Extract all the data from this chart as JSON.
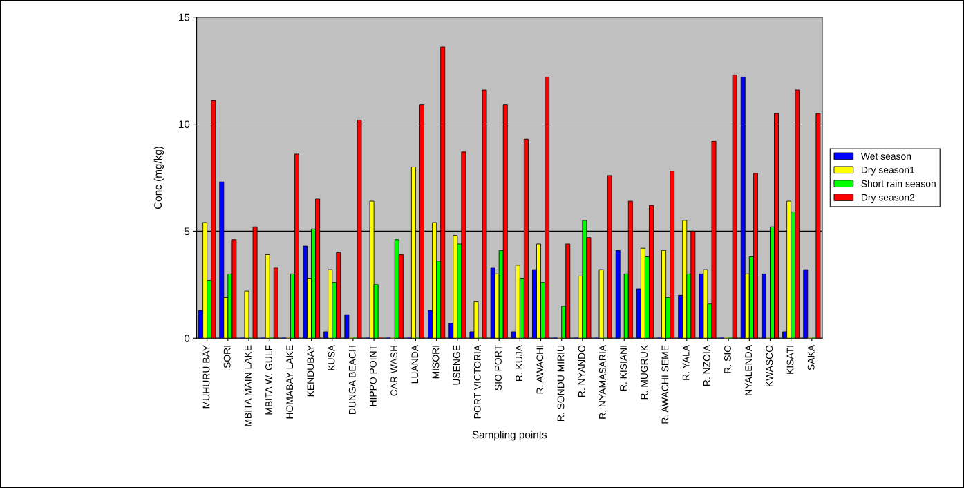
{
  "chart_data": {
    "type": "bar",
    "xlabel": "Sampling points",
    "ylabel": "Conc (mg/kg)",
    "categories": [
      "MUHURU BAY",
      "SORI",
      "MBITA MAIN LAKE",
      "MBITA W. GULF",
      "HOMABAY LAKE",
      "KENDUBAY",
      "KUSA",
      "DUNGA BEACH",
      "HIPPO POINT",
      "CAR WASH",
      "LUANDA",
      "MISORI",
      "USENGE",
      "PORT VICTORIA",
      "SIO PORT",
      "R. KUJA",
      "R. AWACHI",
      "R. SONDU MIRIU",
      "R. NYANDO",
      "R. NYAMASARIA",
      "R. KISIANI",
      "R. MUGRUK",
      "R. AWACHI SEME",
      "R. YALA",
      "R. NZOIA",
      "R. SIO",
      "NYALENDA",
      "KWASCO",
      "KISATI",
      "SAKA"
    ],
    "series": [
      {
        "name": "Wet season",
        "color": "#0000ff",
        "values": [
          1.3,
          7.3,
          0,
          0,
          0,
          4.3,
          0.3,
          1.1,
          0,
          0,
          0,
          1.3,
          0.7,
          0.3,
          3.3,
          0.3,
          3.2,
          0,
          0,
          0,
          4.1,
          2.3,
          0,
          2.0,
          3.0,
          0,
          12.2,
          3.0,
          0.3,
          3.2
        ]
      },
      {
        "name": "Dry season1",
        "color": "#ffff00",
        "values": [
          5.4,
          1.9,
          2.2,
          3.9,
          0,
          2.8,
          3.2,
          0,
          6.4,
          0,
          8.0,
          5.4,
          4.8,
          1.7,
          3.0,
          3.4,
          4.4,
          0,
          2.9,
          3.2,
          0,
          4.2,
          4.1,
          5.5,
          3.2,
          0,
          3.0,
          0,
          6.4,
          0
        ]
      },
      {
        "name": "Short rain season",
        "color": "#00ff00",
        "values": [
          2.7,
          3.0,
          0,
          0,
          3.0,
          5.1,
          2.6,
          0,
          2.5,
          4.6,
          0,
          3.6,
          4.4,
          0,
          4.1,
          2.8,
          2.6,
          1.5,
          5.5,
          0,
          3.0,
          3.8,
          1.9,
          3.0,
          1.6,
          0,
          3.8,
          5.2,
          5.9,
          0
        ]
      },
      {
        "name": "Dry season2",
        "color": "#ff0000",
        "values": [
          11.1,
          4.6,
          5.2,
          3.3,
          8.6,
          6.5,
          4.0,
          10.2,
          0,
          3.9,
          10.9,
          13.6,
          8.7,
          11.6,
          10.9,
          9.3,
          12.2,
          4.4,
          4.7,
          7.6,
          6.4,
          6.2,
          7.8,
          5.0,
          9.2,
          12.3,
          7.7,
          10.5,
          11.6,
          10.5
        ]
      }
    ],
    "ylim": [
      0,
      15
    ],
    "yticks": [
      0,
      5,
      10,
      15
    ],
    "grid": "y",
    "legend": "right"
  }
}
